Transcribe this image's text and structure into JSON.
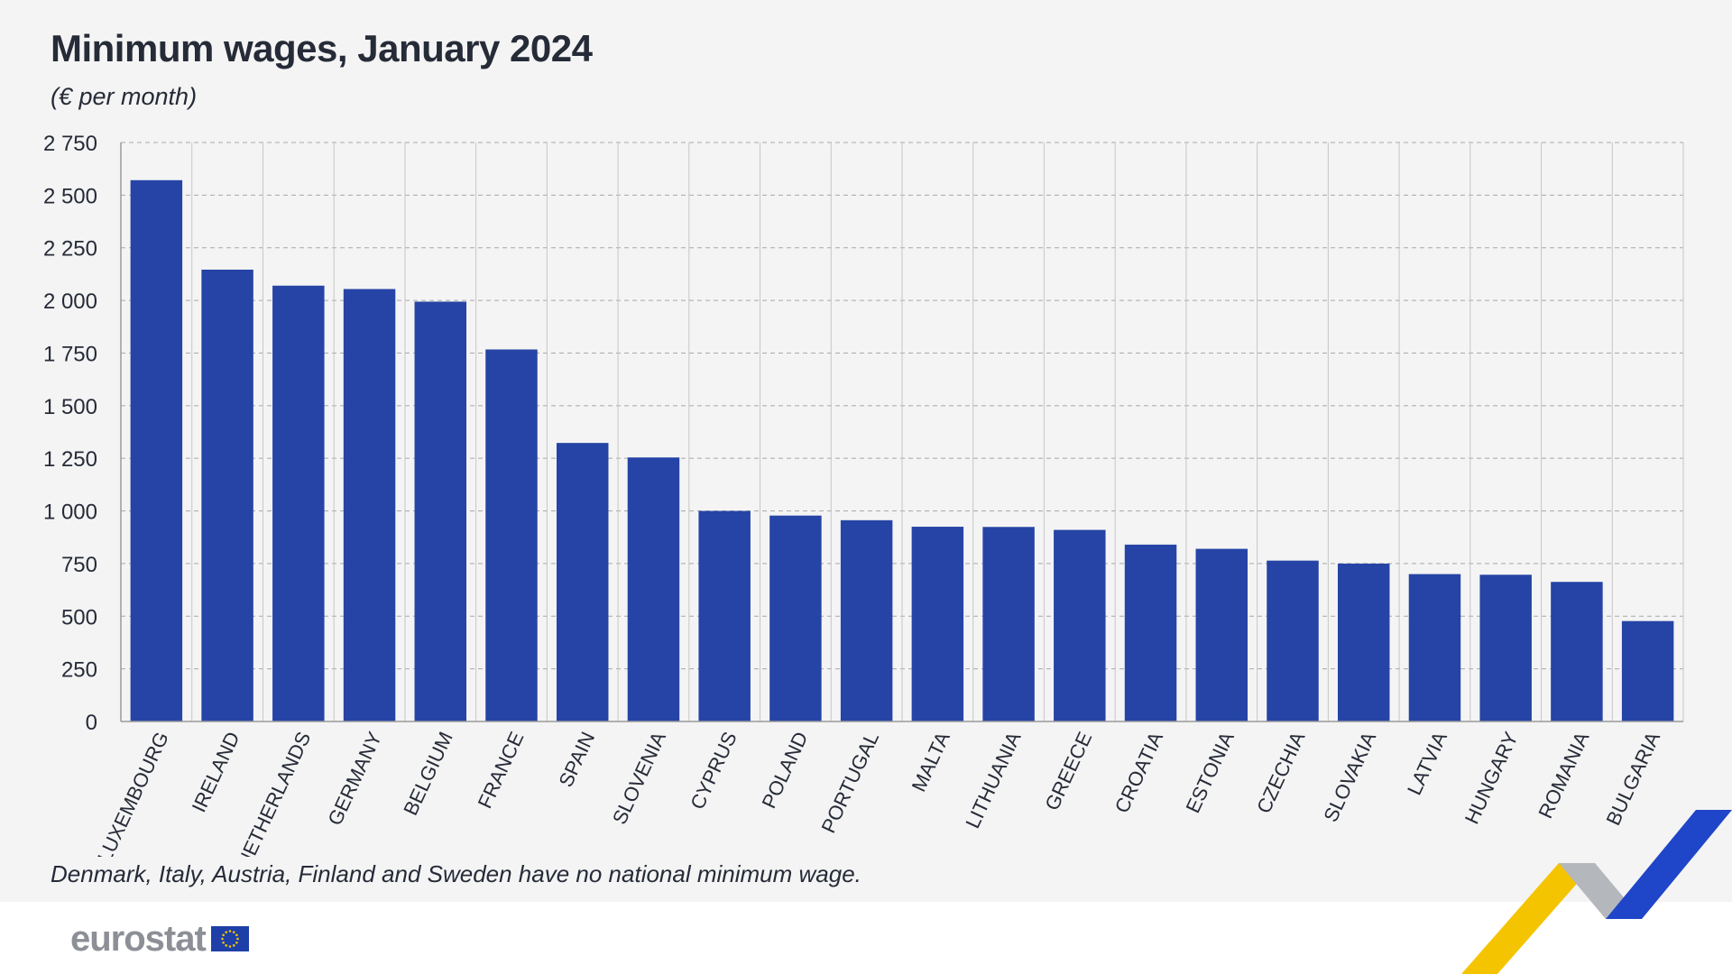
{
  "chart_data": {
    "type": "bar",
    "title": "Minimum wages, January 2024",
    "subtitle": "(€ per month)",
    "categories": [
      "LUXEMBOURG",
      "IRELAND",
      "NETHERLANDS",
      "GERMANY",
      "BELGIUM",
      "FRANCE",
      "SPAIN",
      "SLOVENIA",
      "CYPRUS",
      "POLAND",
      "PORTUGAL",
      "MALTA",
      "LITHUANIA",
      "GREECE",
      "CROATIA",
      "ESTONIA",
      "CZECHIA",
      "SLOVAKIA",
      "LATVIA",
      "HUNGARY",
      "ROMANIA",
      "BULGARIA"
    ],
    "values": [
      2571,
      2146,
      2070,
      2054,
      1994,
      1767,
      1323,
      1254,
      1000,
      978,
      956,
      925,
      924,
      910,
      840,
      820,
      764,
      750,
      700,
      697,
      663,
      477
    ],
    "yticks": [
      "0",
      "250",
      "500",
      "750",
      "1 000",
      "1 250",
      "1 500",
      "1 750",
      "2 000",
      "2 250",
      "2 500",
      "2 750"
    ],
    "ylim": [
      0,
      2750
    ],
    "grid": true,
    "bar_color": "#2644a6",
    "footnote": "Denmark, Italy, Austria, Finland and Sweden have no national minimum wage."
  },
  "brand": {
    "logo_text": "eurostat",
    "flag_icon": "eu-flag-icon",
    "colors": {
      "blue": "#2644a6",
      "yellow": "#f5c400",
      "grey": "#b0b3b8",
      "dark": "#262b38"
    }
  }
}
